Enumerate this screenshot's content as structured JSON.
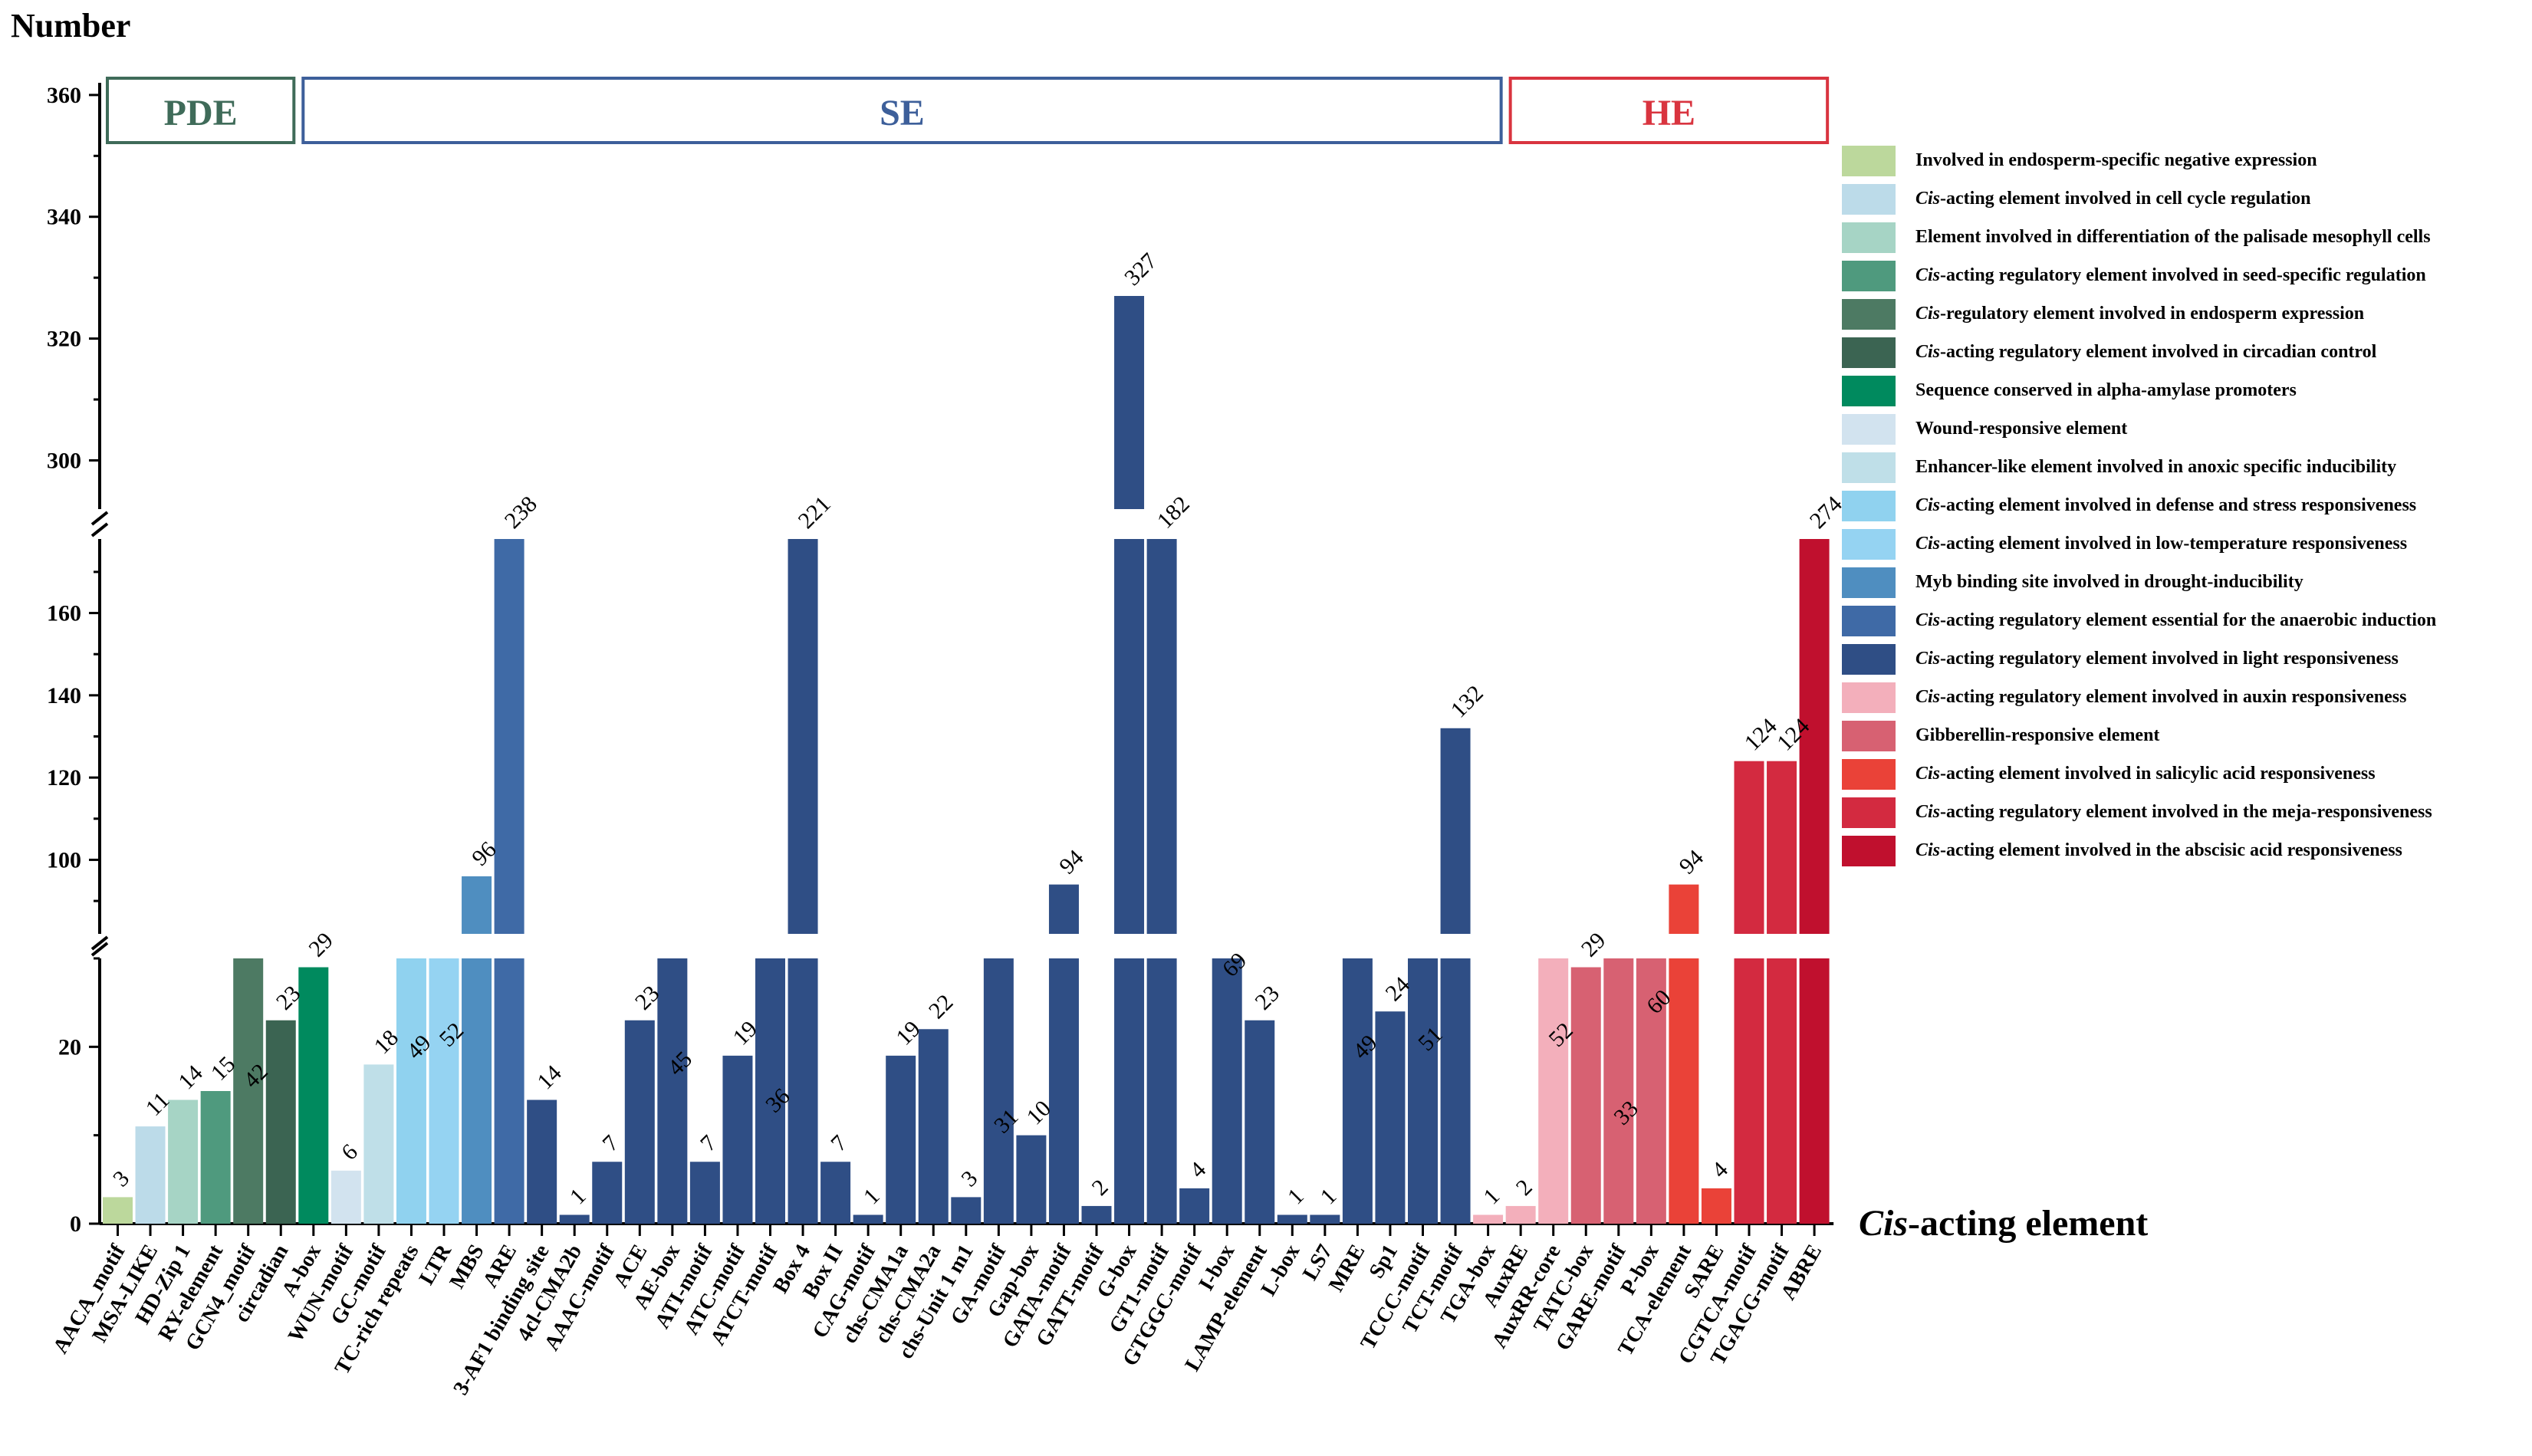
{
  "chart_data": {
    "type": "bar",
    "ylabel": "Number",
    "xlabel_italic": "Cis",
    "xlabel_rest": "-acting element",
    "y_segments": [
      {
        "range": [
          0,
          30
        ],
        "ticks": [
          0,
          20
        ]
      },
      {
        "range": [
          82,
          178
        ],
        "ticks": [
          100,
          120,
          140,
          160
        ]
      },
      {
        "range": [
          292,
          362
        ],
        "ticks": [
          300,
          320,
          340,
          360
        ]
      }
    ],
    "groups": [
      {
        "name": "PDE",
        "color": "#3f6b59",
        "from": 0,
        "to": 5
      },
      {
        "name": "SE",
        "color": "#3d5f9a",
        "from": 6,
        "to": 42
      },
      {
        "name": "HE",
        "color": "#d9343f",
        "from": 43,
        "to": 52
      }
    ],
    "legend": [
      {
        "italic": "",
        "text": "Involved in endosperm-specific negative expression",
        "color": "#bcd89c"
      },
      {
        "italic": "Cis",
        "text": "-acting element involved in cell cycle regulation",
        "color": "#bcdbe9"
      },
      {
        "italic": "",
        "text": "Element involved in differentiation of the palisade mesophyll cells",
        "color": "#a6d4c5"
      },
      {
        "italic": "Cis",
        "text": "-acting regulatory element involved in seed-specific regulation",
        "color": "#4f9a7e"
      },
      {
        "italic": "Cis",
        "text": "-regulatory element involved in endosperm expression",
        "color": "#4d7a63"
      },
      {
        "italic": "Cis",
        "text": "-acting regulatory element involved in circadian control",
        "color": "#3b6452"
      },
      {
        "italic": "",
        "text": "Sequence conserved in alpha-amylase promoters",
        "color": "#008a5e"
      },
      {
        "italic": "",
        "text": "Wound-responsive element",
        "color": "#d2e3ef"
      },
      {
        "italic": "",
        "text": "Enhancer-like element involved in anoxic specific inducibility",
        "color": "#bfdfe8"
      },
      {
        "italic": "Cis",
        "text": "-acting element involved in defense and stress responsiveness",
        "color": "#90d2ef"
      },
      {
        "italic": "Cis",
        "text": "-acting element involved in low-temperature responsiveness",
        "color": "#95d3f2"
      },
      {
        "italic": "",
        "text": "Myb binding site involved in drought-inducibility",
        "color": "#4f8ec0"
      },
      {
        "italic": "Cis",
        "text": "-acting regulatory element essential for the anaerobic induction",
        "color": "#3f6aa6"
      },
      {
        "italic": "Cis",
        "text": "-acting regulatory element involved in light responsiveness",
        "color": "#2f4e85"
      },
      {
        "italic": "Cis",
        "text": "-acting regulatory element involved in auxin responsiveness",
        "color": "#f3afbb"
      },
      {
        "italic": "",
        "text": "Gibberellin-responsive element",
        "color": "#d76172"
      },
      {
        "italic": "Cis",
        "text": "-acting element involved in salicylic acid responsiveness",
        "color": "#ea4238"
      },
      {
        "italic": "Cis",
        "text": "-acting regulatory element involved in the meja-responsiveness",
        "color": "#d32a40"
      },
      {
        "italic": "Cis",
        "text": "-acting element involved in the abscisic acid responsiveness",
        "color": "#c0102e"
      }
    ],
    "categories": [
      "AACA_motif",
      "MSA-LIKE",
      "HD-Zip 1",
      "RY-element",
      "GCN4_motif",
      "circadian",
      "A-box",
      "WUN-motif",
      "GC-motif",
      "TC-rich repeats",
      "LTR",
      "MBS",
      "ARE",
      "3-AF1 binding site",
      "4cl-CMA2b",
      "AAAC-motif",
      "ACE",
      "AE-box",
      "ATI-motif",
      "ATC-motif",
      "ATCT-motif",
      "Box 4",
      "Box II",
      "CAG-motif",
      "chs-CMA1a",
      "chs-CMA2a",
      "chs-Unit 1 m1",
      "GA-motif",
      "Gap-box",
      "GATA-motif",
      "GATT-motif",
      "G-box",
      "GT1-motif",
      "GTGGC-motif",
      "I-box",
      "LAMP-element",
      "L-box",
      "LS7",
      "MRE",
      "Sp1",
      "TCCC-motif",
      "TCT-motif",
      "TGA-box",
      "AuxRE",
      "AuxRR-core",
      "TATC-box",
      "GARE-motif",
      "P-box",
      "TCA-element",
      "SARE",
      "CGTCA-motif",
      "TGACG-motif",
      "ABRE"
    ],
    "values": [
      3,
      11,
      14,
      15,
      42,
      23,
      29,
      6,
      18,
      49,
      52,
      96,
      238,
      14,
      1,
      7,
      23,
      45,
      7,
      19,
      36,
      221,
      7,
      1,
      19,
      22,
      3,
      31,
      10,
      94,
      2,
      327,
      182,
      4,
      69,
      23,
      1,
      1,
      49,
      24,
      51,
      132,
      1,
      2,
      52,
      29,
      33,
      60,
      94,
      4,
      124,
      124,
      274
    ],
    "colors": [
      "#bcd89c",
      "#bcdbe9",
      "#a6d4c5",
      "#4f9a7e",
      "#4d7a63",
      "#3b6452",
      "#008a5e",
      "#d2e3ef",
      "#bfdfe8",
      "#90d2ef",
      "#95d3f2",
      "#4f8ec0",
      "#3f6aa6",
      "#2f4e85",
      "#2f4e85",
      "#2f4e85",
      "#2f4e85",
      "#2f4e85",
      "#2f4e85",
      "#2f4e85",
      "#2f4e85",
      "#2f4e85",
      "#2f4e85",
      "#2f4e85",
      "#2f4e85",
      "#2f4e85",
      "#2f4e85",
      "#2f4e85",
      "#2f4e85",
      "#2f4e85",
      "#2f4e85",
      "#2f4e85",
      "#2f4e85",
      "#2f4e85",
      "#2f4e85",
      "#2f4e85",
      "#2f4e85",
      "#2f4e85",
      "#2f4e85",
      "#2f4e85",
      "#2f4e85",
      "#2f4e85",
      "#f3afbb",
      "#f3afbb",
      "#f3afbb",
      "#d76172",
      "#d76172",
      "#d76172",
      "#ea4238",
      "#ea4238",
      "#d32a40",
      "#d32a40",
      "#c0102e"
    ]
  }
}
